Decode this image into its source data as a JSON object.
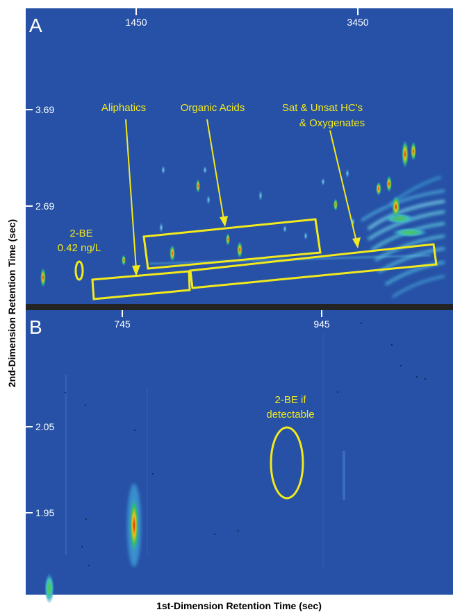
{
  "figure": {
    "ylabel": "2nd-Dimension Retention Time (sec)",
    "xlabel": "1st-Dimension Retention Time (sec)"
  },
  "chart_data": [
    {
      "type": "heatmap",
      "panel_label": "A",
      "x_ticks": [
        "1450",
        "3450"
      ],
      "y_ticks": [
        "3.69",
        "2.69"
      ],
      "annotations": [
        "Aliphatics",
        "Organic Acids",
        "Sat & Unsat HC's",
        "& Oxygenates",
        "2-BE",
        "0.42 ng/L"
      ],
      "colors": {
        "background": "#2651a6",
        "annotation": "#f2ea1c"
      }
    },
    {
      "type": "heatmap",
      "panel_label": "B",
      "x_ticks": [
        "745",
        "945"
      ],
      "y_ticks": [
        "2.05",
        "1.95"
      ],
      "annotations": [
        "2-BE if",
        "detectable"
      ],
      "colors": {
        "background": "#2651a6",
        "annotation": "#f2ea1c"
      }
    }
  ]
}
